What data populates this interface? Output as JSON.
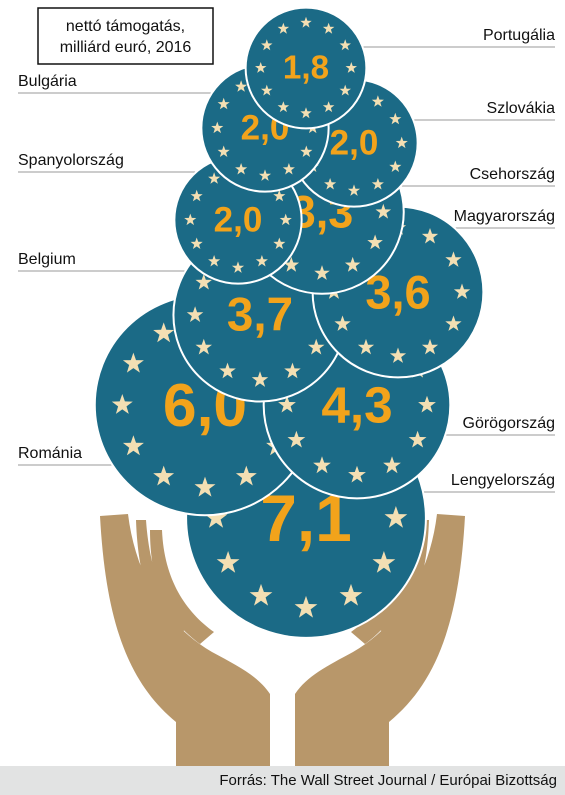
{
  "chart_data": {
    "type": "bubble",
    "title": [
      "nettó támogatás,",
      "milliárd euró, 2016"
    ],
    "categories": [
      "Portugália",
      "Bulgária",
      "Szlovákia",
      "Spanyolország",
      "Csehország",
      "Magyarország",
      "Belgium",
      "Görögország",
      "Románia",
      "Lengyelország"
    ],
    "values": [
      1.8,
      2.0,
      2.0,
      2.0,
      3.3,
      3.6,
      3.7,
      4.3,
      6.0,
      7.1
    ],
    "value_labels": [
      "1,8",
      "2,0",
      "2,0",
      "2,0",
      "3,3",
      "3,6",
      "3,7",
      "4,3",
      "6,0",
      "7,1"
    ],
    "color": "#1b6a86",
    "source": "Forrás: The Wall Street Journal / Európai Bizottság"
  }
}
